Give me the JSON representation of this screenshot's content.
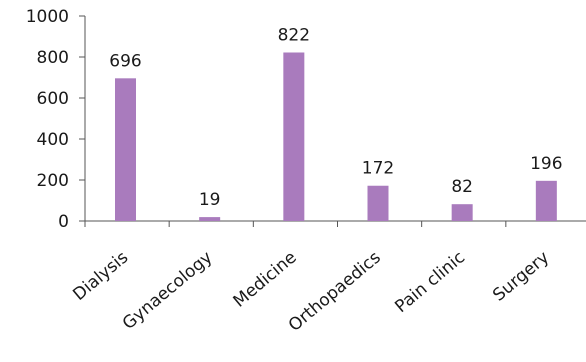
{
  "chart_data": {
    "type": "bar",
    "categories": [
      "Dialysis",
      "Gynaecology",
      "Medicine",
      "Orthopaedics",
      "Pain clinic",
      "Surgery"
    ],
    "values": [
      696,
      19,
      822,
      172,
      82,
      196
    ],
    "data_labels": [
      "696",
      "19",
      "822",
      "172",
      "82",
      "196"
    ],
    "ylim": [
      0,
      1000
    ],
    "yticks": [
      0,
      200,
      400,
      600,
      800,
      1000
    ],
    "ytick_labels": [
      "0",
      "200",
      "400",
      "600",
      "800",
      "1000"
    ],
    "grid": false,
    "legend": "none",
    "title": "",
    "xlabel": "",
    "ylabel": ""
  },
  "colors": {
    "bar": "#a97bbd",
    "axis": "#555555",
    "text": "#1a1a1a"
  }
}
